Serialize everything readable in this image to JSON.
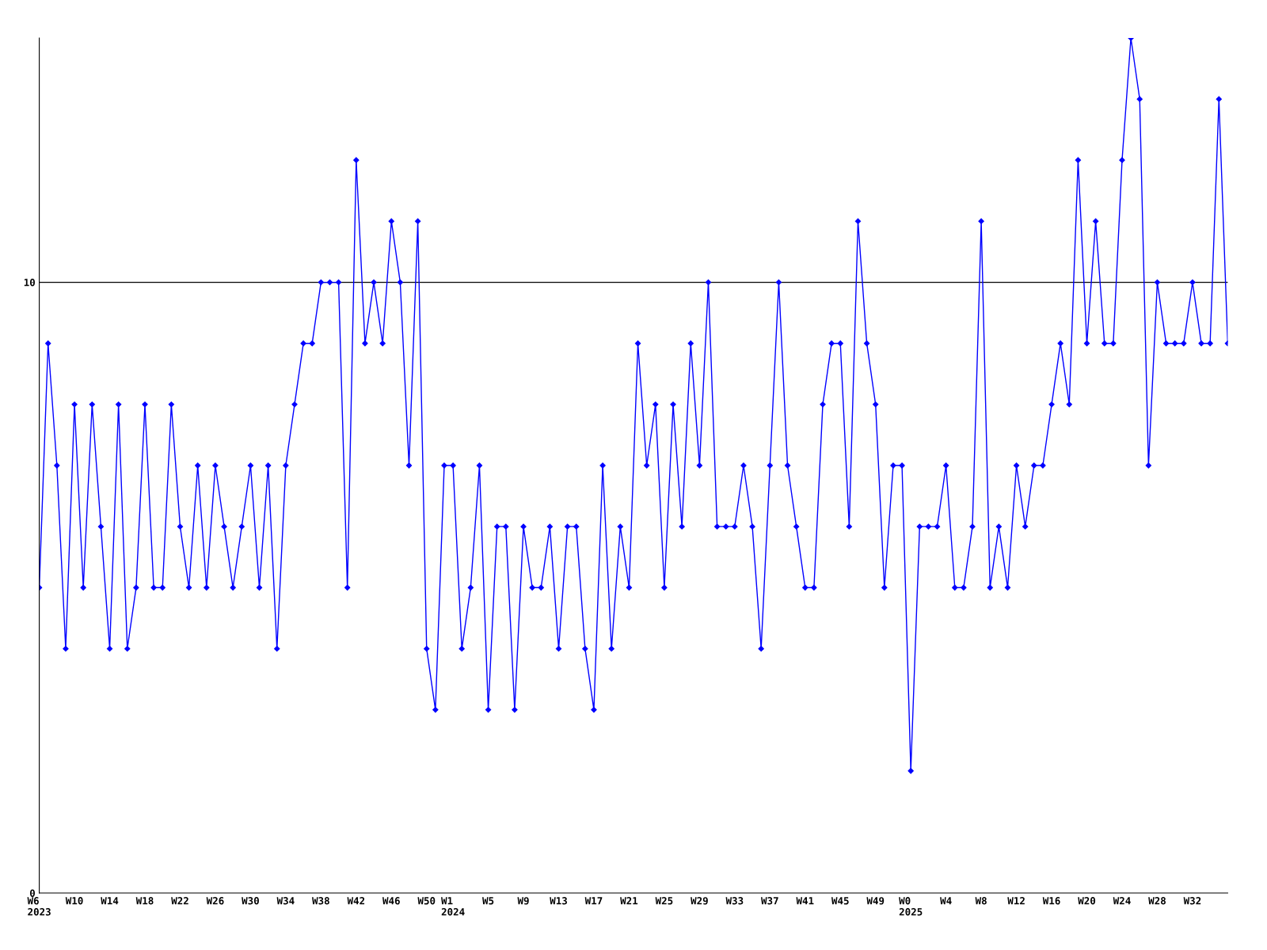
{
  "chart_data": {
    "type": "line",
    "categories": [
      "W6\n2023",
      null,
      null,
      null,
      "W10",
      null,
      null,
      null,
      "W14",
      null,
      null,
      null,
      "W18",
      null,
      null,
      null,
      "W22",
      null,
      null,
      null,
      "W26",
      null,
      null,
      null,
      "W30",
      null,
      null,
      null,
      "W34",
      null,
      null,
      null,
      "W38",
      null,
      null,
      null,
      "W42",
      null,
      null,
      null,
      "W46",
      null,
      null,
      null,
      "W50",
      null,
      null,
      "W1\n2024",
      null,
      null,
      null,
      "W5",
      null,
      null,
      null,
      "W9",
      null,
      null,
      null,
      "W13",
      null,
      null,
      null,
      "W17",
      null,
      null,
      null,
      "W21",
      null,
      null,
      null,
      "W25",
      null,
      null,
      null,
      "W29",
      null,
      null,
      null,
      "W33",
      null,
      null,
      null,
      "W37",
      null,
      null,
      null,
      "W41",
      null,
      null,
      null,
      "W45",
      null,
      null,
      null,
      "W49",
      null,
      null,
      null,
      "W0\n2025",
      null,
      null,
      null,
      "W4",
      null,
      null,
      null,
      "W8",
      null,
      null,
      null,
      "W12",
      null,
      null,
      null,
      "W16",
      null,
      null,
      null,
      "W20",
      null,
      null,
      null,
      "W24",
      null,
      null,
      null,
      "W28",
      null,
      null,
      null,
      "W32",
      null,
      null,
      null,
      null
    ],
    "series": [
      {
        "color": "#0000ff",
        "values": [
          5,
          9,
          7,
          4,
          8,
          5,
          8,
          6,
          4,
          8,
          4,
          5,
          8,
          5,
          5,
          8,
          6,
          5,
          7,
          5,
          7,
          6,
          5,
          6,
          7,
          5,
          7,
          4,
          7,
          8,
          9,
          9,
          10,
          10,
          10,
          5,
          12,
          9,
          10,
          9,
          11,
          10,
          7,
          11,
          4,
          3,
          7,
          7,
          4,
          5,
          7,
          3,
          6,
          6,
          3,
          6,
          5,
          5,
          6,
          4,
          6,
          6,
          4,
          3,
          7,
          4,
          6,
          5,
          9,
          7,
          8,
          5,
          8,
          6,
          9,
          7,
          10,
          6,
          6,
          6,
          7,
          6,
          4,
          7,
          10,
          7,
          6,
          5,
          5,
          8,
          9,
          9,
          6,
          11,
          9,
          8,
          5,
          7,
          7,
          2,
          6,
          6,
          6,
          7,
          5,
          5,
          6,
          11,
          5,
          6,
          5,
          7,
          6,
          7,
          7,
          8,
          9,
          8,
          12,
          9,
          11,
          9,
          9,
          12,
          14,
          13,
          7,
          10,
          9,
          9,
          9,
          10,
          9,
          9,
          13,
          9
        ]
      }
    ],
    "ylim": [
      0,
      14
    ],
    "yticks": [
      0,
      10
    ],
    "ref_lines": [
      {
        "axis": "y",
        "value": 10,
        "color": "#000000"
      }
    ],
    "marker": "diamond",
    "line_style": "solid",
    "grid": false,
    "legend": false
  }
}
